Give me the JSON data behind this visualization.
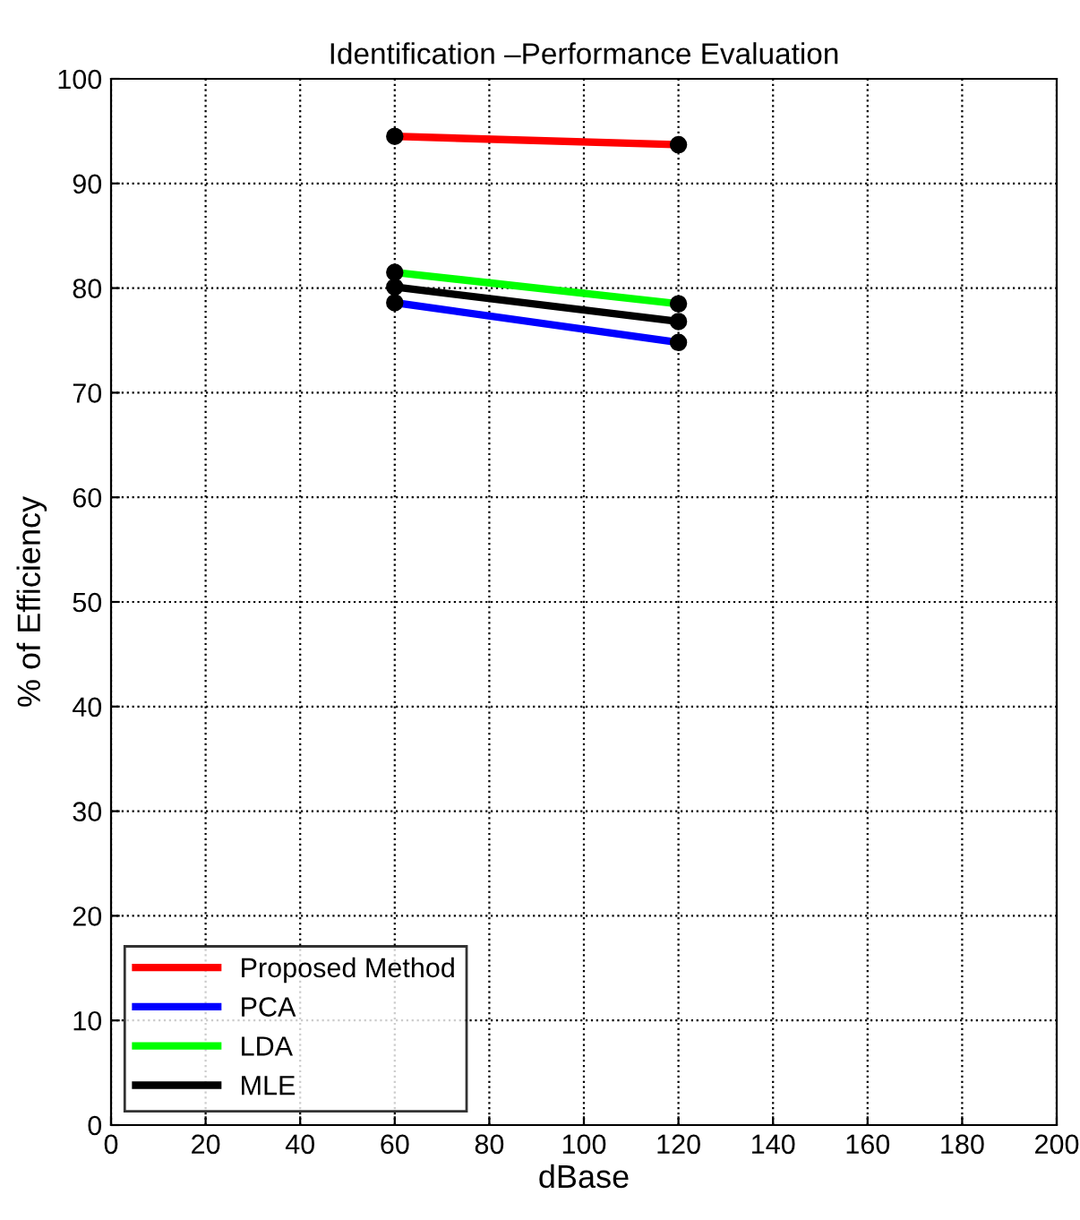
{
  "chart_data": {
    "type": "line",
    "title": "Identification –Performance Evaluation",
    "xlabel": "dBase",
    "ylabel": "% of Efficiency",
    "x": [
      60,
      120
    ],
    "series": [
      {
        "name": "Proposed Method",
        "color": "#ff0000",
        "values": [
          94.5,
          93.7
        ]
      },
      {
        "name": "PCA",
        "color": "#0000ff",
        "values": [
          78.6,
          74.8
        ]
      },
      {
        "name": "LDA",
        "color": "#00ff00",
        "values": [
          81.5,
          78.5
        ]
      },
      {
        "name": "MLE",
        "color": "#000000",
        "values": [
          80.1,
          76.8
        ]
      }
    ],
    "xlim": [
      0,
      200
    ],
    "xticks": [
      0,
      20,
      40,
      60,
      80,
      100,
      120,
      140,
      160,
      180,
      200
    ],
    "ylim": [
      0,
      100
    ],
    "yticks": [
      0,
      10,
      20,
      30,
      40,
      50,
      60,
      70,
      80,
      90,
      100
    ],
    "grid": true,
    "legend": "bottom left",
    "marker": "circle",
    "line_style": "solid"
  }
}
